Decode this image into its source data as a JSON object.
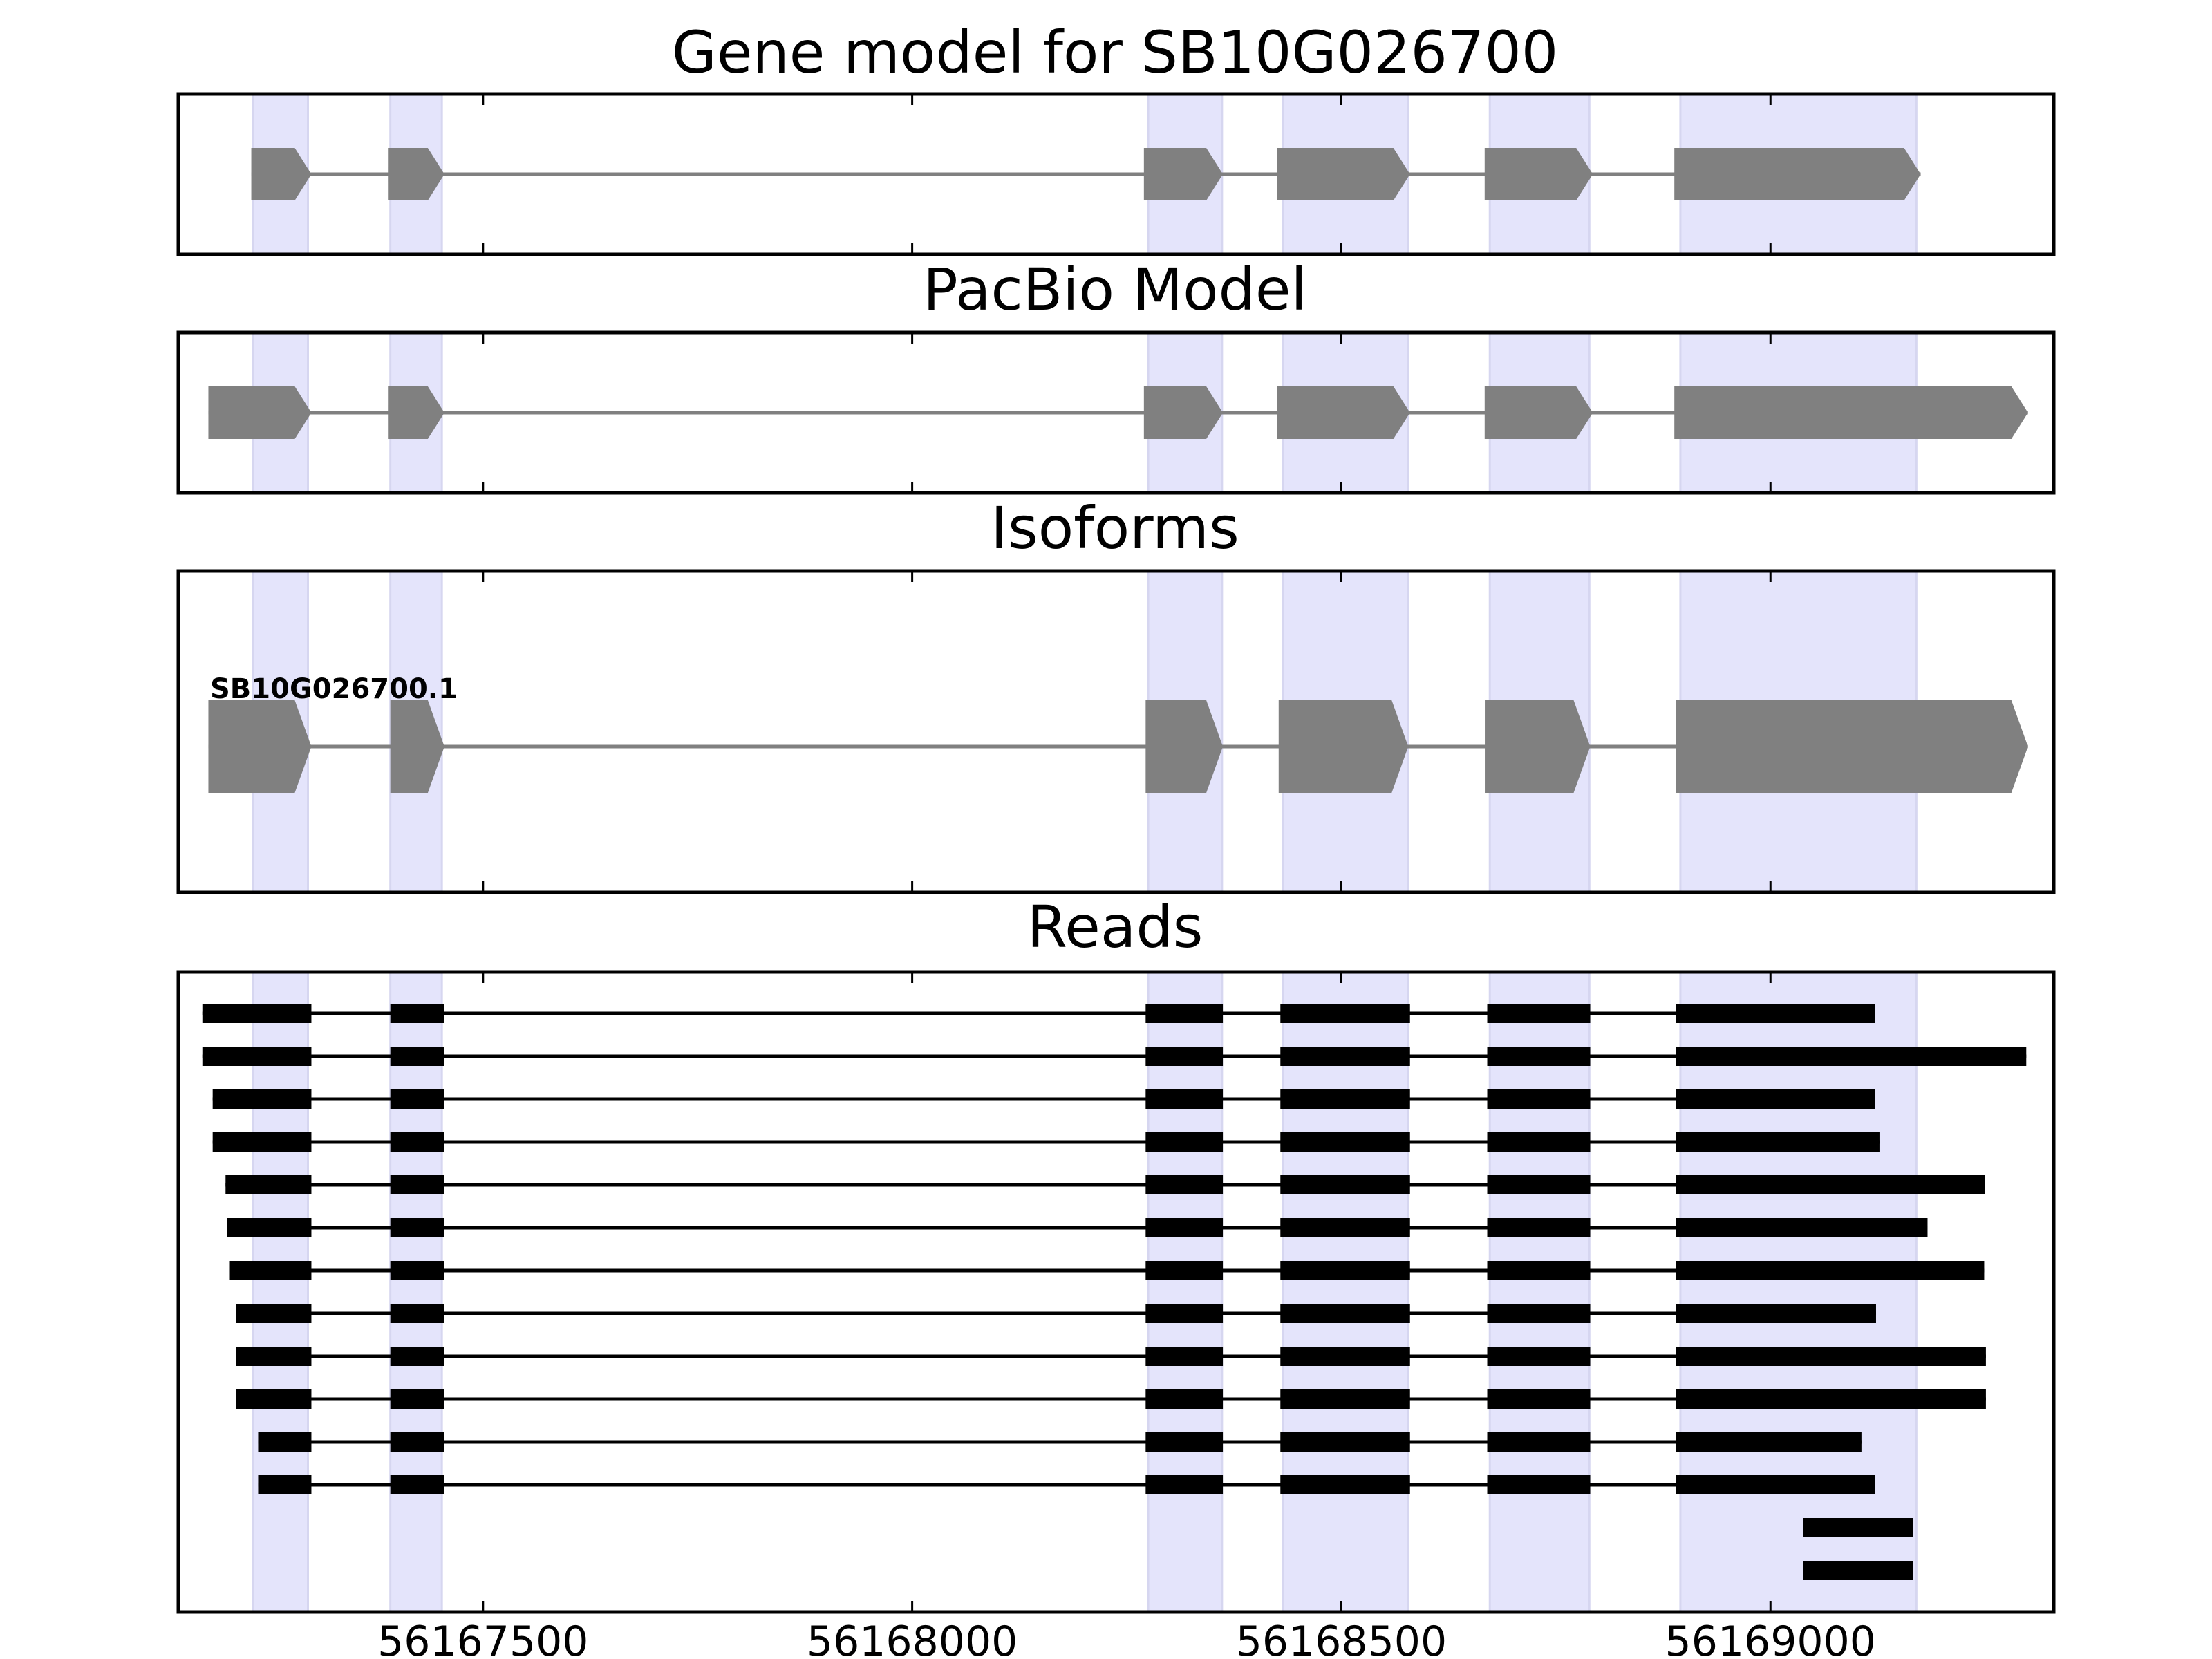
{
  "chart_data": {
    "type": "gene-structure",
    "xlim": [
      56167145,
      56169330
    ],
    "x_ticks": [
      56167500,
      56168000,
      56168500,
      56169000
    ],
    "x_tick_labels": [
      "56167500",
      "56168000",
      "56168500",
      "56169000"
    ],
    "exon_highlights": [
      [
        56167232,
        56167296
      ],
      [
        56167392,
        56167452
      ],
      [
        56168275,
        56168361
      ],
      [
        56168432,
        56168578
      ],
      [
        56168673,
        56168789
      ],
      [
        56168895,
        56169170
      ]
    ],
    "colors": {
      "highlight": "#e4e4fb",
      "feature": "#808080",
      "read": "#000000"
    },
    "panels": [
      {
        "title": "Gene model for SB10G026700",
        "tracks": [
          {
            "exons": [
              [
                56167230,
                56167300
              ],
              [
                56167390,
                56167455
              ],
              [
                56168270,
                56168362
              ],
              [
                56168425,
                56168580
              ],
              [
                56168667,
                56168793
              ],
              [
                56168888,
                56169175
              ]
            ]
          }
        ]
      },
      {
        "title": "PacBio Model",
        "tracks": [
          {
            "exons": [
              [
                56167180,
                56167300
              ],
              [
                56167390,
                56167455
              ],
              [
                56168270,
                56168362
              ],
              [
                56168425,
                56168580
              ],
              [
                56168667,
                56168793
              ],
              [
                56168888,
                56169300
              ]
            ]
          }
        ]
      },
      {
        "title": "Isoforms",
        "tracks": [
          {
            "name": "SB10G026700.1",
            "exons": [
              [
                56167180,
                56167300
              ],
              [
                56167392,
                56167455
              ],
              [
                56168272,
                56168362
              ],
              [
                56168427,
                56168578
              ],
              [
                56168668,
                56168790
              ],
              [
                56168890,
                56169300
              ]
            ]
          }
        ]
      },
      {
        "title": "Reads",
        "tracks": [
          {
            "exons": [
              [
                56167173,
                56167300
              ],
              [
                56167392,
                56167455
              ],
              [
                56168272,
                56168362
              ],
              [
                56168429,
                56168580
              ],
              [
                56168670,
                56168790
              ],
              [
                56168890,
                56169122
              ]
            ]
          },
          {
            "exons": [
              [
                56167173,
                56167300
              ],
              [
                56167392,
                56167455
              ],
              [
                56168272,
                56168362
              ],
              [
                56168429,
                56168580
              ],
              [
                56168670,
                56168790
              ],
              [
                56168890,
                56169298
              ]
            ]
          },
          {
            "exons": [
              [
                56167185,
                56167300
              ],
              [
                56167392,
                56167455
              ],
              [
                56168272,
                56168362
              ],
              [
                56168429,
                56168580
              ],
              [
                56168670,
                56168790
              ],
              [
                56168890,
                56169122
              ]
            ]
          },
          {
            "exons": [
              [
                56167185,
                56167300
              ],
              [
                56167392,
                56167455
              ],
              [
                56168272,
                56168362
              ],
              [
                56168429,
                56168580
              ],
              [
                56168670,
                56168790
              ],
              [
                56168890,
                56169127
              ]
            ]
          },
          {
            "exons": [
              [
                56167200,
                56167300
              ],
              [
                56167392,
                56167455
              ],
              [
                56168272,
                56168362
              ],
              [
                56168429,
                56168580
              ],
              [
                56168670,
                56168790
              ],
              [
                56168890,
                56169250
              ]
            ]
          },
          {
            "exons": [
              [
                56167202,
                56167300
              ],
              [
                56167392,
                56167455
              ],
              [
                56168272,
                56168362
              ],
              [
                56168429,
                56168580
              ],
              [
                56168670,
                56168790
              ],
              [
                56168890,
                56169183
              ]
            ]
          },
          {
            "exons": [
              [
                56167205,
                56167300
              ],
              [
                56167392,
                56167455
              ],
              [
                56168272,
                56168362
              ],
              [
                56168429,
                56168580
              ],
              [
                56168670,
                56168790
              ],
              [
                56168890,
                56169249
              ]
            ]
          },
          {
            "exons": [
              [
                56167212,
                56167300
              ],
              [
                56167392,
                56167455
              ],
              [
                56168272,
                56168362
              ],
              [
                56168429,
                56168580
              ],
              [
                56168670,
                56168790
              ],
              [
                56168890,
                56169123
              ]
            ]
          },
          {
            "exons": [
              [
                56167212,
                56167300
              ],
              [
                56167392,
                56167455
              ],
              [
                56168272,
                56168362
              ],
              [
                56168429,
                56168580
              ],
              [
                56168670,
                56168790
              ],
              [
                56168890,
                56169251
              ]
            ]
          },
          {
            "exons": [
              [
                56167212,
                56167300
              ],
              [
                56167392,
                56167455
              ],
              [
                56168272,
                56168362
              ],
              [
                56168429,
                56168580
              ],
              [
                56168670,
                56168790
              ],
              [
                56168890,
                56169251
              ]
            ]
          },
          {
            "exons": [
              [
                56167238,
                56167300
              ],
              [
                56167392,
                56167455
              ],
              [
                56168272,
                56168362
              ],
              [
                56168429,
                56168580
              ],
              [
                56168670,
                56168790
              ],
              [
                56168890,
                56169106
              ]
            ]
          },
          {
            "exons": [
              [
                56167238,
                56167300
              ],
              [
                56167392,
                56167455
              ],
              [
                56168272,
                56168362
              ],
              [
                56168429,
                56168580
              ],
              [
                56168670,
                56168790
              ],
              [
                56168890,
                56169122
              ]
            ]
          },
          {
            "exons": [
              [
                56169038,
                56169166
              ]
            ]
          },
          {
            "exons": [
              [
                56169038,
                56169166
              ]
            ]
          }
        ]
      }
    ]
  }
}
